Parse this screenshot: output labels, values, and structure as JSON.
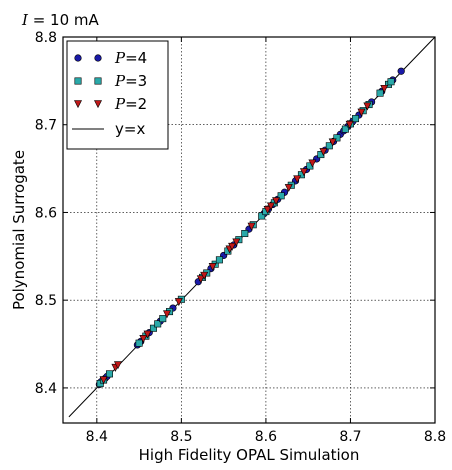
{
  "chart_data": {
    "type": "scatter",
    "title_italic": "I",
    "title_value": " = 10",
    "title_unit": " mA",
    "xlabel": "High Fidelity OPAL Simulation",
    "ylabel": "Polynomial Surrogate",
    "xlim": [
      8.36,
      8.8
    ],
    "ylim": [
      8.36,
      8.8
    ],
    "xticks": [
      8.4,
      8.5,
      8.6,
      8.7,
      8.8
    ],
    "yticks": [
      8.4,
      8.5,
      8.6,
      8.7,
      8.8
    ],
    "xtick_labels": [
      "8.4",
      "8.5",
      "8.6",
      "8.7",
      "8.8"
    ],
    "ytick_labels": [
      "8.4",
      "8.5",
      "8.6",
      "8.7",
      "8.8"
    ],
    "grid": true,
    "legend_position": "top-left",
    "reference_line": {
      "label": "y=x",
      "color": "#000000"
    },
    "series": [
      {
        "name_italic": "P",
        "name_rest": "=4",
        "marker": "circle",
        "color": "#1a1aa8",
        "points": [
          [
            8.403,
            8.404
          ],
          [
            8.405,
            8.407
          ],
          [
            8.41,
            8.411
          ],
          [
            8.412,
            8.413
          ],
          [
            8.448,
            8.449
          ],
          [
            8.452,
            8.453
          ],
          [
            8.462,
            8.463
          ],
          [
            8.475,
            8.476
          ],
          [
            8.49,
            8.491
          ],
          [
            8.52,
            8.521
          ],
          [
            8.535,
            8.536
          ],
          [
            8.55,
            8.551
          ],
          [
            8.562,
            8.563
          ],
          [
            8.58,
            8.581
          ],
          [
            8.598,
            8.599
          ],
          [
            8.603,
            8.604
          ],
          [
            8.608,
            8.609
          ],
          [
            8.614,
            8.615
          ],
          [
            8.622,
            8.623
          ],
          [
            8.635,
            8.636
          ],
          [
            8.648,
            8.649
          ],
          [
            8.66,
            8.661
          ],
          [
            8.67,
            8.671
          ],
          [
            8.68,
            8.681
          ],
          [
            8.688,
            8.689
          ],
          [
            8.692,
            8.693
          ],
          [
            8.697,
            8.698
          ],
          [
            8.703,
            8.704
          ],
          [
            8.71,
            8.711
          ],
          [
            8.725,
            8.726
          ],
          [
            8.737,
            8.738
          ],
          [
            8.75,
            8.751
          ],
          [
            8.76,
            8.761
          ]
        ]
      },
      {
        "name_italic": "P",
        "name_rest": "=3",
        "marker": "square",
        "color": "#2aa9a9",
        "points": [
          [
            8.404,
            8.405
          ],
          [
            8.408,
            8.409
          ],
          [
            8.415,
            8.416
          ],
          [
            8.45,
            8.451
          ],
          [
            8.458,
            8.459
          ],
          [
            8.467,
            8.468
          ],
          [
            8.472,
            8.473
          ],
          [
            8.478,
            8.479
          ],
          [
            8.486,
            8.487
          ],
          [
            8.5,
            8.501
          ],
          [
            8.525,
            8.526
          ],
          [
            8.53,
            8.531
          ],
          [
            8.54,
            8.541
          ],
          [
            8.545,
            8.546
          ],
          [
            8.555,
            8.556
          ],
          [
            8.568,
            8.569
          ],
          [
            8.575,
            8.576
          ],
          [
            8.585,
            8.586
          ],
          [
            8.595,
            8.596
          ],
          [
            8.6,
            8.601
          ],
          [
            8.61,
            8.611
          ],
          [
            8.618,
            8.619
          ],
          [
            8.63,
            8.631
          ],
          [
            8.642,
            8.643
          ],
          [
            8.652,
            8.653
          ],
          [
            8.665,
            8.666
          ],
          [
            8.675,
            8.676
          ],
          [
            8.684,
            8.685
          ],
          [
            8.694,
            8.695
          ],
          [
            8.7,
            8.701
          ],
          [
            8.706,
            8.707
          ],
          [
            8.715,
            8.716
          ],
          [
            8.722,
            8.723
          ],
          [
            8.735,
            8.736
          ],
          [
            8.745,
            8.746
          ],
          [
            8.748,
            8.749
          ]
        ]
      },
      {
        "name_italic": "P",
        "name_rest": "=2",
        "marker": "triangle-down",
        "color": "#c01818",
        "points": [
          [
            8.408,
            8.409
          ],
          [
            8.422,
            8.423
          ],
          [
            8.425,
            8.426
          ],
          [
            8.455,
            8.456
          ],
          [
            8.46,
            8.461
          ],
          [
            8.483,
            8.484
          ],
          [
            8.497,
            8.498
          ],
          [
            8.523,
            8.524
          ],
          [
            8.527,
            8.528
          ],
          [
            8.537,
            8.538
          ],
          [
            8.557,
            8.558
          ],
          [
            8.56,
            8.561
          ],
          [
            8.565,
            8.566
          ],
          [
            8.583,
            8.584
          ],
          [
            8.602,
            8.603
          ],
          [
            8.606,
            8.607
          ],
          [
            8.612,
            8.613
          ],
          [
            8.627,
            8.628
          ],
          [
            8.637,
            8.638
          ],
          [
            8.645,
            8.646
          ],
          [
            8.655,
            8.656
          ],
          [
            8.668,
            8.669
          ],
          [
            8.679,
            8.68
          ],
          [
            8.699,
            8.7
          ],
          [
            8.713,
            8.714
          ],
          [
            8.72,
            8.721
          ],
          [
            8.74,
            8.741
          ]
        ]
      }
    ]
  }
}
